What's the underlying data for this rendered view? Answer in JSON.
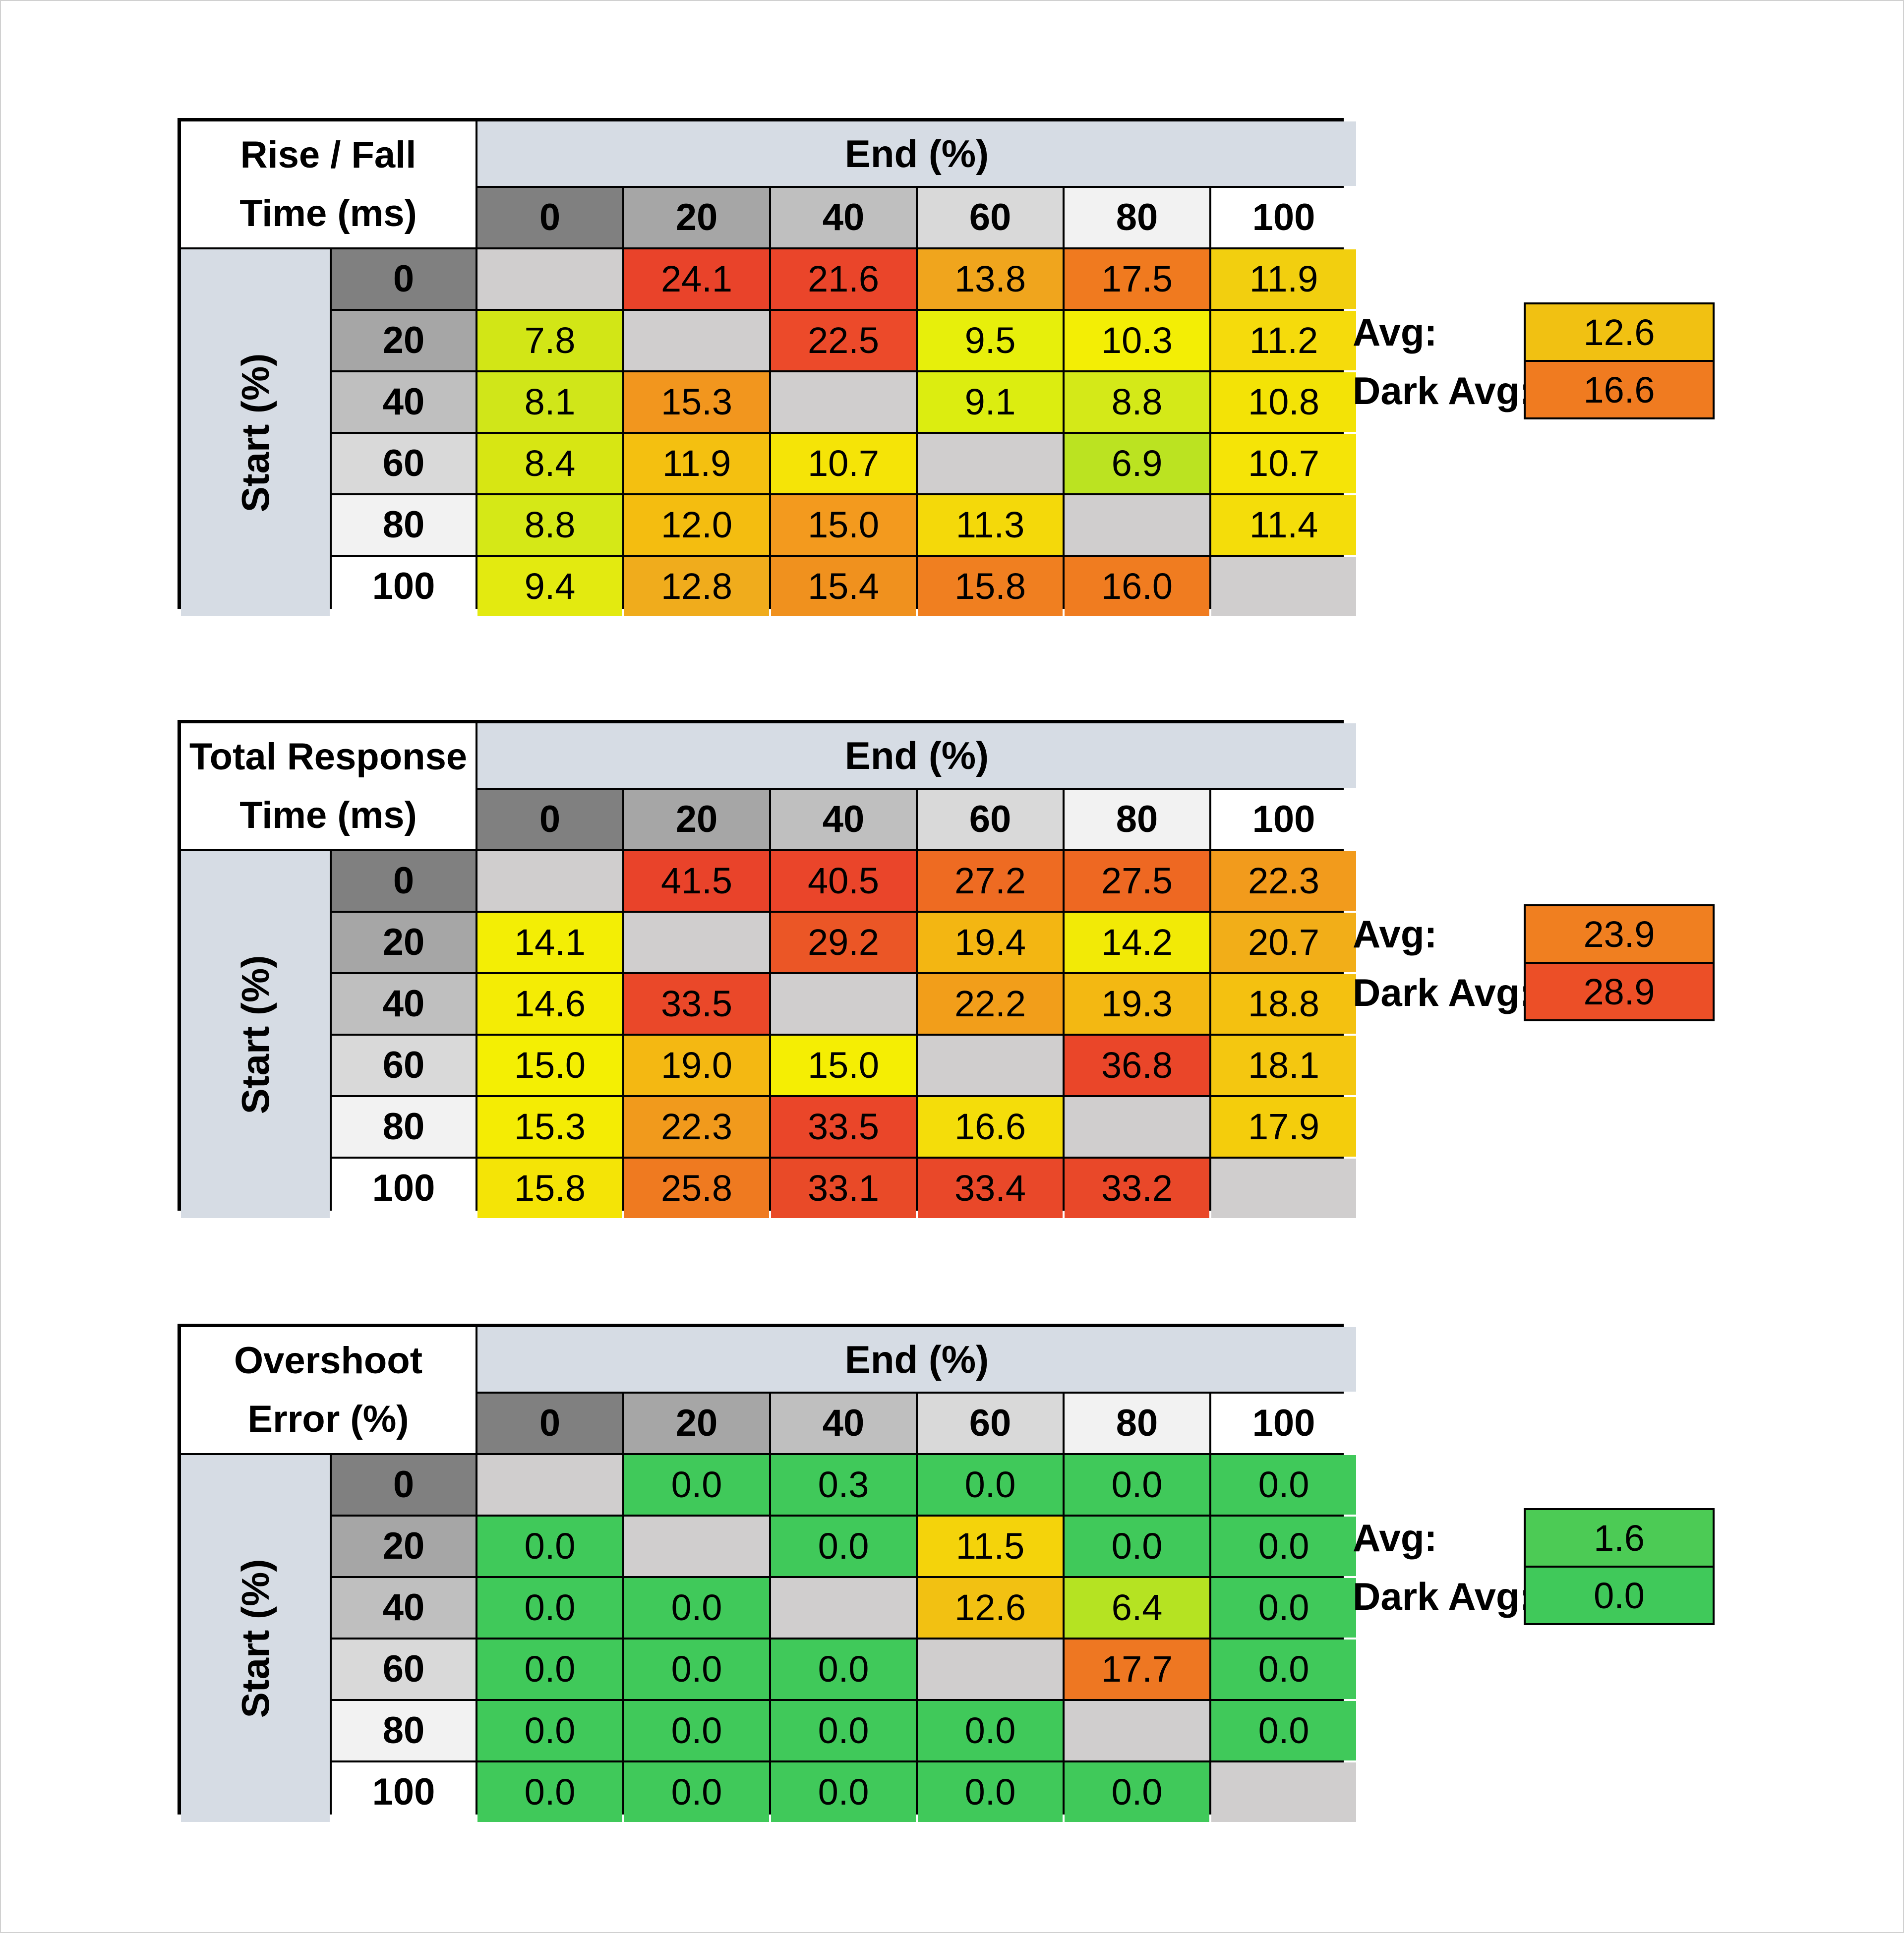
{
  "chart_data": [
    {
      "type": "heatmap",
      "title_lines": [
        "Rise / Fall",
        "Time (ms)"
      ],
      "x_label": "End (%)",
      "y_label": "Start (%)",
      "columns": [
        "0",
        "20",
        "40",
        "60",
        "80",
        "100"
      ],
      "rows": [
        "0",
        "20",
        "40",
        "60",
        "80",
        "100"
      ],
      "values": [
        [
          "",
          "24.1",
          "21.6",
          "13.8",
          "17.5",
          "11.9"
        ],
        [
          "7.8",
          "",
          "22.5",
          "9.5",
          "10.3",
          "11.2"
        ],
        [
          "8.1",
          "15.3",
          "",
          "9.1",
          "8.8",
          "10.8"
        ],
        [
          "8.4",
          "11.9",
          "10.7",
          "",
          "6.9",
          "10.7"
        ],
        [
          "8.8",
          "12.0",
          "15.0",
          "11.3",
          "",
          "11.4"
        ],
        [
          "9.4",
          "12.8",
          "15.4",
          "15.8",
          "16.0",
          ""
        ]
      ],
      "colors": [
        [
          "",
          "#e9432a",
          "#ea452a",
          "#f0a51d",
          "#f07a1f",
          "#f2cf0f"
        ],
        [
          "#d2e616",
          "",
          "#ec4a2a",
          "#e7ef0b",
          "#f3ee05",
          "#f5db0c"
        ],
        [
          "#d0e619",
          "#f2961e",
          "",
          "#dced10",
          "#d4e918",
          "#f3e306"
        ],
        [
          "#d7e613",
          "#f4c010",
          "#f5e407",
          "",
          "#bbe321",
          "#f5e407"
        ],
        [
          "#d5e817",
          "#f4bd10",
          "#f39a1e",
          "#f4d90a",
          "",
          "#f4dd0a"
        ],
        [
          "#e3ea10",
          "#f0ac1c",
          "#f0911e",
          "#f07f20",
          "#f07c20",
          ""
        ]
      ],
      "avg_label": "Avg:",
      "avg_value": "12.6",
      "avg_color": "#f1c112",
      "dark_avg_label": "Dark Avg:",
      "dark_avg_value": "16.6",
      "dark_avg_color": "#f07b20"
    },
    {
      "type": "heatmap",
      "title_lines": [
        "Total Response",
        "Time (ms)"
      ],
      "x_label": "End (%)",
      "y_label": "Start (%)",
      "columns": [
        "0",
        "20",
        "40",
        "60",
        "80",
        "100"
      ],
      "rows": [
        "0",
        "20",
        "40",
        "60",
        "80",
        "100"
      ],
      "values": [
        [
          "",
          "41.5",
          "40.5",
          "27.2",
          "27.5",
          "22.3"
        ],
        [
          "14.1",
          "",
          "29.2",
          "19.4",
          "14.2",
          "20.7"
        ],
        [
          "14.6",
          "33.5",
          "",
          "22.2",
          "19.3",
          "18.8"
        ],
        [
          "15.0",
          "19.0",
          "15.0",
          "",
          "36.8",
          "18.1"
        ],
        [
          "15.3",
          "22.3",
          "33.5",
          "16.6",
          "",
          "17.9"
        ],
        [
          "15.8",
          "25.8",
          "33.1",
          "33.4",
          "33.2",
          ""
        ]
      ],
      "colors": [
        [
          "",
          "#e9432a",
          "#ea452a",
          "#ee6b22",
          "#ee6822",
          "#f29b1c"
        ],
        [
          "#f3ee05",
          "",
          "#eb5626",
          "#f3b612",
          "#f2ea06",
          "#f2ae18"
        ],
        [
          "#f4ec05",
          "#ea4829",
          "",
          "#f29e1a",
          "#f3b812",
          "#f4c110"
        ],
        [
          "#f4ef03",
          "#f4b812",
          "#f5ee03",
          "",
          "#ea4629",
          "#f4c710"
        ],
        [
          "#f4ec04",
          "#f19a1c",
          "#ea4629",
          "#f4dd0a",
          "",
          "#f4cd0c"
        ],
        [
          "#f4e406",
          "#ef7a20",
          "#e94a28",
          "#e94829",
          "#e94829",
          ""
        ]
      ],
      "avg_label": "Avg:",
      "avg_value": "23.9",
      "avg_color": "#f07f20",
      "dark_avg_label": "Dark Avg:",
      "dark_avg_value": "28.9",
      "dark_avg_color": "#ec4f27"
    },
    {
      "type": "heatmap",
      "title_lines": [
        "Overshoot",
        "Error (%)"
      ],
      "x_label": "End (%)",
      "y_label": "Start (%)",
      "columns": [
        "0",
        "20",
        "40",
        "60",
        "80",
        "100"
      ],
      "rows": [
        "0",
        "20",
        "40",
        "60",
        "80",
        "100"
      ],
      "values": [
        [
          "",
          "0.0",
          "0.3",
          "0.0",
          "0.0",
          "0.0"
        ],
        [
          "0.0",
          "",
          "0.0",
          "11.5",
          "0.0",
          "0.0"
        ],
        [
          "0.0",
          "0.0",
          "",
          "12.6",
          "6.4",
          "0.0"
        ],
        [
          "0.0",
          "0.0",
          "0.0",
          "",
          "17.7",
          "0.0"
        ],
        [
          "0.0",
          "0.0",
          "0.0",
          "0.0",
          "",
          "0.0"
        ],
        [
          "0.0",
          "0.0",
          "0.0",
          "0.0",
          "0.0",
          ""
        ]
      ],
      "colors": [
        [
          "",
          "#40c95a",
          "#40c95a",
          "#40c95a",
          "#40c95a",
          "#40c95a"
        ],
        [
          "#40c95a",
          "",
          "#40c95a",
          "#f4d30b",
          "#40c95a",
          "#40c95a"
        ],
        [
          "#40c95a",
          "#40c95a",
          "",
          "#f2c112",
          "#b5e322",
          "#40c95a"
        ],
        [
          "#40c95a",
          "#40c95a",
          "#40c95a",
          "",
          "#ee7722",
          "#40c95a"
        ],
        [
          "#40c95a",
          "#40c95a",
          "#40c95a",
          "#40c95a",
          "",
          "#40c95a"
        ],
        [
          "#40c95a",
          "#40c95a",
          "#40c95a",
          "#40c95a",
          "#40c95a",
          ""
        ]
      ],
      "avg_label": "Avg:",
      "avg_value": "1.6",
      "avg_color": "#4ccb55",
      "dark_avg_label": "Dark Avg:",
      "dark_avg_value": "0.0",
      "dark_avg_color": "#40c95a"
    }
  ],
  "diagonal_color": "#d0cece"
}
